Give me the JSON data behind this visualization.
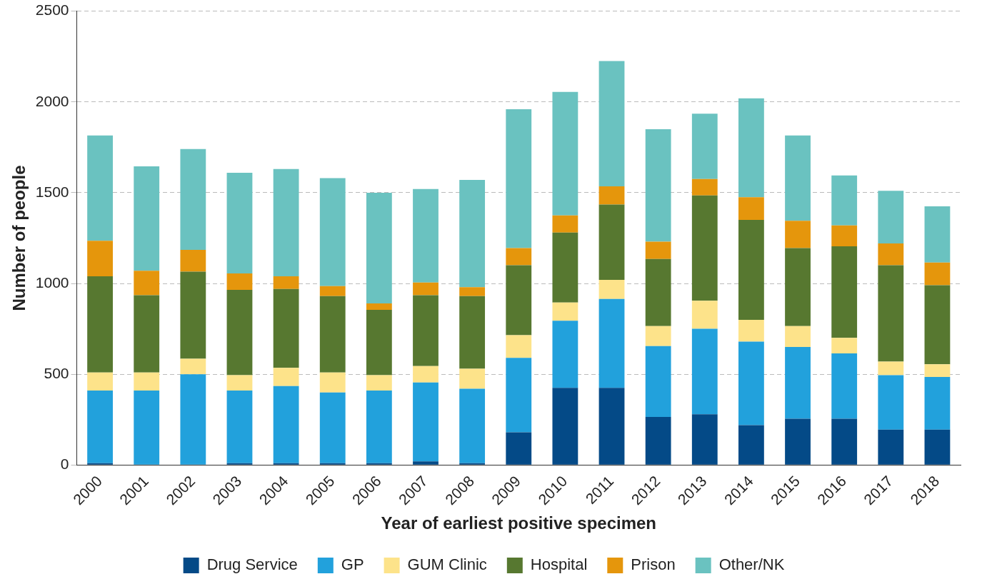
{
  "chart_data": {
    "type": "bar",
    "stacked": true,
    "xlabel": "Year of earliest positive specimen",
    "ylabel": "Number of people",
    "categories": [
      "2000",
      "2001",
      "2002",
      "2003",
      "2004",
      "2005",
      "2006",
      "2007",
      "2008",
      "2009",
      "2010",
      "2011",
      "2012",
      "2013",
      "2014",
      "2015",
      "2016",
      "2017",
      "2018"
    ],
    "series": [
      {
        "name": "Drug Service",
        "color": "#044a87",
        "values": [
          10,
          0,
          0,
          10,
          10,
          10,
          10,
          20,
          10,
          180,
          425,
          425,
          265,
          280,
          220,
          255,
          255,
          195,
          195
        ]
      },
      {
        "name": "GP",
        "color": "#22a1dc",
        "values": [
          400,
          410,
          500,
          400,
          425,
          390,
          400,
          435,
          410,
          410,
          370,
          490,
          390,
          470,
          460,
          395,
          360,
          300,
          290
        ]
      },
      {
        "name": "GUM Clinic",
        "color": "#fde38a",
        "values": [
          100,
          100,
          85,
          85,
          100,
          110,
          85,
          90,
          110,
          125,
          100,
          105,
          110,
          155,
          120,
          115,
          85,
          75,
          70
        ]
      },
      {
        "name": "Hospital",
        "color": "#577830",
        "values": [
          530,
          425,
          480,
          470,
          435,
          420,
          360,
          390,
          400,
          385,
          385,
          415,
          370,
          580,
          550,
          430,
          505,
          530,
          435
        ]
      },
      {
        "name": "Prison",
        "color": "#e5960c",
        "values": [
          195,
          135,
          120,
          90,
          70,
          55,
          35,
          70,
          50,
          95,
          95,
          100,
          95,
          90,
          125,
          150,
          115,
          120,
          125
        ]
      },
      {
        "name": "Other/NK",
        "color": "#6ac2c0",
        "values": [
          580,
          575,
          555,
          555,
          590,
          595,
          610,
          515,
          590,
          765,
          680,
          690,
          620,
          360,
          545,
          470,
          275,
          290,
          310
        ]
      }
    ],
    "ylim": [
      0,
      2500
    ],
    "yticks": [
      0,
      500,
      1000,
      1500,
      2000,
      2500
    ],
    "grid": "y",
    "legend": "bottom"
  }
}
